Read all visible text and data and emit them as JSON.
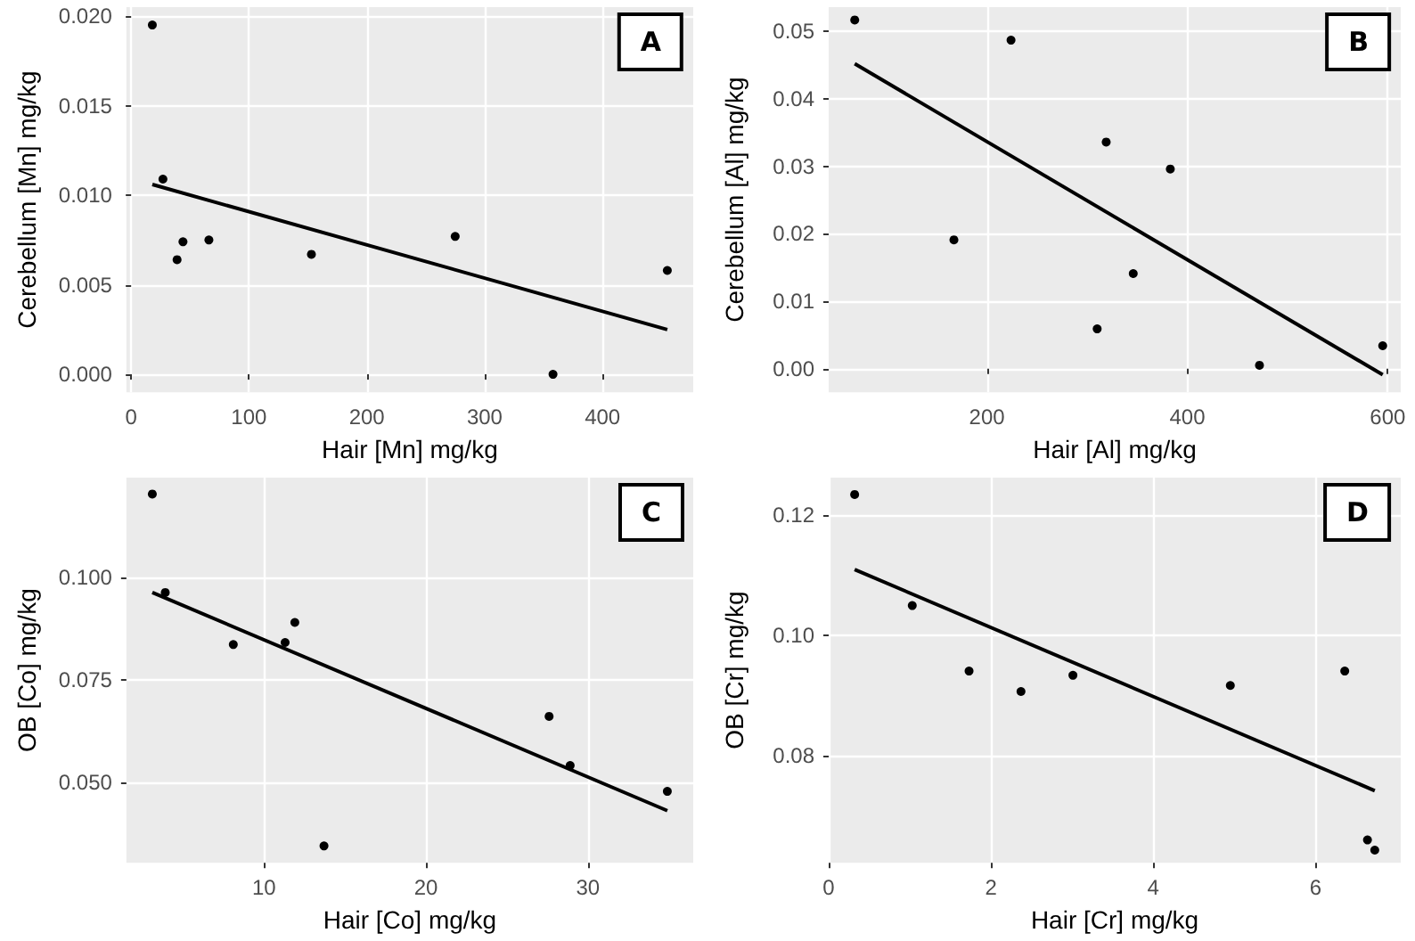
{
  "chart_data": [
    {
      "type": "scatter",
      "xlabel": "Hair [Mn] mg/kg",
      "ylabel": "Cerebellum [Mn] mg/kg",
      "annotations": [
        "A"
      ],
      "xlim": [
        -4,
        477
      ],
      "xticks": [
        0,
        100,
        200,
        300,
        400
      ],
      "ylim": [
        -0.001,
        0.0205
      ],
      "yticks": [
        {
          "value": 0,
          "label": "0.000"
        },
        {
          "value": 0.005,
          "label": "0.005"
        },
        {
          "value": 0.01,
          "label": "0.010"
        },
        {
          "value": 0.015,
          "label": "0.015"
        },
        {
          "value": 0.02,
          "label": "0.020"
        }
      ],
      "grid": true,
      "series": [
        {
          "marker": "circle",
          "color": "#000000",
          "x": [
            18,
            27,
            39,
            44,
            66,
            153,
            275,
            358,
            455
          ],
          "values": [
            0.0195,
            0.0109,
            0.0064,
            0.0074,
            0.0075,
            0.0067,
            0.0077,
            0.0,
            0.0058
          ]
        },
        {
          "type": "line",
          "marker": "none",
          "color": "#000000",
          "x": [
            18,
            455
          ],
          "values": [
            0.0106,
            0.0025
          ]
        }
      ]
    },
    {
      "type": "scatter",
      "xlabel": "Hair [Al] mg/kg",
      "ylabel": "Cerebellum [Al] mg/kg",
      "annotations": [
        "B"
      ],
      "xlim": [
        42,
        613
      ],
      "xticks": [
        200,
        400,
        600
      ],
      "ylim": [
        -0.0035,
        0.0536
      ],
      "yticks": [
        {
          "value": 0,
          "label": "0.00"
        },
        0.01,
        0.02,
        0.03,
        0.04,
        0.05
      ],
      "grid": true,
      "series": [
        {
          "marker": "circle",
          "color": "#000000",
          "x": [
            68,
            167,
            224,
            310,
            319,
            346,
            383,
            472,
            595
          ],
          "values": [
            0.0517,
            0.0191,
            0.0487,
            0.0059,
            0.0336,
            0.0141,
            0.0296,
            0.0005,
            0.0034
          ]
        },
        {
          "type": "line",
          "marker": "none",
          "color": "#000000",
          "x": [
            68,
            595
          ],
          "values": [
            0.0452,
            -0.0009
          ]
        }
      ]
    },
    {
      "type": "scatter",
      "xlabel": "Hair [Co] mg/kg",
      "ylabel": "OB [Co] mg/kg",
      "annotations": [
        "C"
      ],
      "xlim": [
        1.5,
        36.5
      ],
      "xticks": [
        10,
        20,
        30
      ],
      "ylim": [
        0.0305,
        0.1244
      ],
      "yticks": [
        {
          "value": 0.05,
          "label": "0.050"
        },
        0.075,
        {
          "value": 0.1,
          "label": "0.100"
        }
      ],
      "grid": true,
      "series": [
        {
          "marker": "circle",
          "color": "#000000",
          "x": [
            3.1,
            3.9,
            8.1,
            11.3,
            11.9,
            13.7,
            27.6,
            28.9,
            34.9
          ],
          "values": [
            0.1204,
            0.0964,
            0.0837,
            0.0842,
            0.0891,
            0.0346,
            0.0662,
            0.0542,
            0.0479
          ]
        },
        {
          "type": "line",
          "marker": "none",
          "color": "#000000",
          "x": [
            3.1,
            34.9
          ],
          "values": [
            0.0964,
            0.0432
          ]
        }
      ]
    },
    {
      "type": "scatter",
      "xlabel": "Hair [Cr] mg/kg",
      "ylabel": "OB [Cr] mg/kg",
      "annotations": [
        "D"
      ],
      "xlim": [
        0,
        7.05
      ],
      "xticks": [
        0,
        2,
        4,
        6
      ],
      "ylim": [
        0.0622,
        0.1263
      ],
      "yticks": [
        0.08,
        {
          "value": 0.1,
          "label": "0.10"
        },
        0.12
      ],
      "grid": true,
      "series": [
        {
          "marker": "circle",
          "color": "#000000",
          "x": [
            0.32,
            1.03,
            1.73,
            2.37,
            3.01,
            4.95,
            6.36,
            6.64,
            6.73
          ],
          "values": [
            0.1235,
            0.105,
            0.0941,
            0.0907,
            0.0934,
            0.0917,
            0.0941,
            0.066,
            0.0643
          ]
        },
        {
          "type": "line",
          "marker": "none",
          "color": "#000000",
          "x": [
            0.32,
            6.73
          ],
          "values": [
            0.111,
            0.0742
          ]
        }
      ]
    }
  ]
}
